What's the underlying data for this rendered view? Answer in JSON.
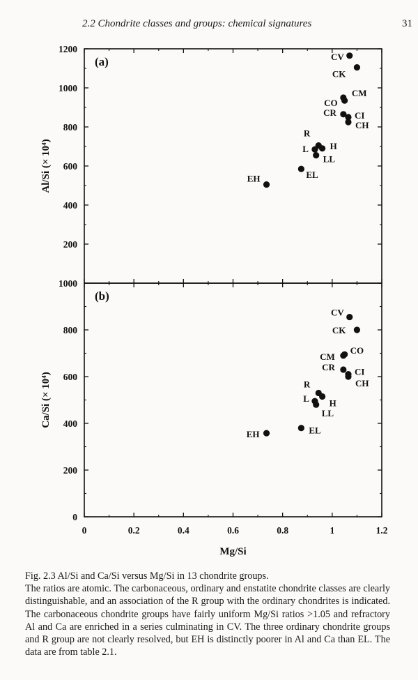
{
  "header": {
    "running_title": "2.2  Chondrite classes and groups: chemical signatures",
    "page_number": "31"
  },
  "caption": {
    "title": "Fig. 2.3  Al/Si and Ca/Si versus Mg/Si in 13 chondrite groups.",
    "body": "The ratios are atomic. The carbonaceous, ordinary and enstatite chondrite classes are clearly distinguishable, and an association of the R group with the ordinary chondrites is indicated. The carbonaceous chondrite groups have fairly uniform Mg/Si ratios >1.05 and refractory Al and Ca are enriched in a series culminating in CV. The three ordinary chondrite groups and R group are not clearly resolved, but EH is distinctly poorer in Al and Ca than EL. The data are from table 2.1."
  },
  "chart_data": [
    {
      "type": "scatter",
      "panel_label": "(a)",
      "ylabel": "Al/Si (× 10⁴)",
      "xlabel": "Mg/Si",
      "xlim": [
        0,
        1.2
      ],
      "ylim": [
        0,
        1200
      ],
      "xticks": [
        0,
        0.2,
        0.4,
        0.6,
        0.8,
        1,
        1.2
      ],
      "xtick_labels": [
        "0",
        "0.2",
        "0.4",
        "0.6",
        "0.8",
        "1",
        "1.2"
      ],
      "yticks": [
        200,
        400,
        600,
        800,
        1000,
        1200
      ],
      "ytick_labels": [
        "200",
        "400",
        "600",
        "800",
        "1000",
        "1200"
      ],
      "grid": false,
      "points": [
        {
          "label": "CV",
          "x": 1.07,
          "y": 1165
        },
        {
          "label": "CK",
          "x": 1.1,
          "y": 1105
        },
        {
          "label": "CM",
          "x": 1.045,
          "y": 950
        },
        {
          "label": "CO",
          "x": 1.05,
          "y": 935
        },
        {
          "label": "CR",
          "x": 1.045,
          "y": 865
        },
        {
          "label": "CI",
          "x": 1.065,
          "y": 850
        },
        {
          "label": "CH",
          "x": 1.065,
          "y": 825
        },
        {
          "label": "R",
          "x": 0.945,
          "y": 705
        },
        {
          "label": "H",
          "x": 0.96,
          "y": 690
        },
        {
          "label": "L",
          "x": 0.93,
          "y": 685
        },
        {
          "label": "LL",
          "x": 0.935,
          "y": 655
        },
        {
          "label": "EL",
          "x": 0.875,
          "y": 585
        },
        {
          "label": "EH",
          "x": 0.735,
          "y": 505
        }
      ]
    },
    {
      "type": "scatter",
      "panel_label": "(b)",
      "ylabel": "Ca/Si (× 10⁴)",
      "xlabel": "Mg/Si",
      "xlim": [
        0,
        1.2
      ],
      "ylim": [
        0,
        1000
      ],
      "xticks": [
        0,
        0.2,
        0.4,
        0.6,
        0.8,
        1,
        1.2
      ],
      "xtick_labels": [
        "0",
        "0.2",
        "0.4",
        "0.6",
        "0.8",
        "1",
        "1.2"
      ],
      "yticks": [
        0,
        200,
        400,
        600,
        800,
        1000
      ],
      "ytick_labels": [
        "0",
        "200",
        "400",
        "600",
        "800",
        "1000"
      ],
      "grid": false,
      "points": [
        {
          "label": "CV",
          "x": 1.07,
          "y": 855
        },
        {
          "label": "CK",
          "x": 1.1,
          "y": 800
        },
        {
          "label": "CO",
          "x": 1.05,
          "y": 695
        },
        {
          "label": "CM",
          "x": 1.045,
          "y": 690
        },
        {
          "label": "CR",
          "x": 1.045,
          "y": 630
        },
        {
          "label": "CI",
          "x": 1.065,
          "y": 610
        },
        {
          "label": "CH",
          "x": 1.065,
          "y": 600
        },
        {
          "label": "R",
          "x": 0.945,
          "y": 530
        },
        {
          "label": "H",
          "x": 0.96,
          "y": 515
        },
        {
          "label": "L",
          "x": 0.93,
          "y": 495
        },
        {
          "label": "LL",
          "x": 0.935,
          "y": 480
        },
        {
          "label": "EL",
          "x": 0.875,
          "y": 380
        },
        {
          "label": "EH",
          "x": 0.735,
          "y": 358
        }
      ]
    }
  ]
}
